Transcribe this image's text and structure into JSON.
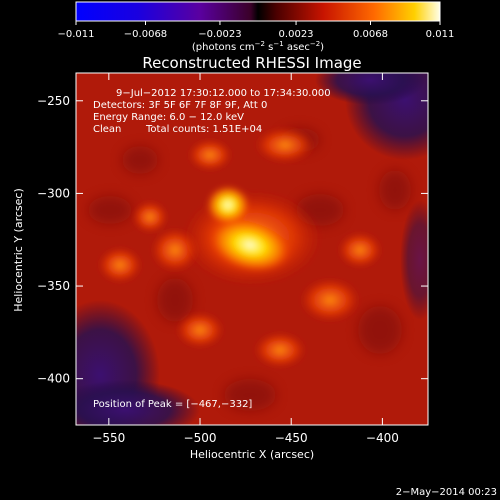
{
  "chart_data": {
    "type": "heatmap",
    "title": "Reconstructed RHESSI Image",
    "xlabel": "Heliocentric X (arcsec)",
    "ylabel": "Heliocentric Y (arcsec)",
    "xlim": [
      -568,
      -375
    ],
    "ylim": [
      -425,
      -235
    ],
    "xticks": [
      -550,
      -500,
      -450,
      -400
    ],
    "yticks": [
      -250,
      -300,
      -350,
      -400
    ],
    "xtick_labels": [
      "−550",
      "−500",
      "−450",
      "−400"
    ],
    "ytick_labels": [
      "−250",
      "−300",
      "−350",
      "−400"
    ],
    "colorbar": {
      "range": [
        -0.011,
        0.011
      ],
      "ticks": [
        -0.011,
        -0.0068,
        -0.0023,
        0.0023,
        0.0068,
        0.011
      ],
      "tick_labels": [
        "−0.011",
        "−0.0068",
        "−0.0023",
        "0.0023",
        "0.0068",
        "0.011"
      ],
      "units_base": "(photons cm",
      "units_exp1": "−2",
      "units_mid1": " s",
      "units_exp2": "−1",
      "units_mid2": " asec",
      "units_exp3": "−2",
      "units_close": ")"
    },
    "annotations": [
      "9−Jul−2012 17:30:12.000 to 17:34:30.000",
      "Detectors: 3F 5F 6F 7F 8F 9F, Att 0",
      "Energy Range: 6.0 − 12.0 keV",
      "Clean",
      "Total counts: 1.51E+04"
    ],
    "peak_label": "Position of Peak = [−467,−332]",
    "peak_position": [
      -467,
      -332
    ],
    "sources": [
      {
        "x": -467,
        "y": -332,
        "value": 0.011
      },
      {
        "x": -480,
        "y": -316,
        "value": 0.0085
      },
      {
        "x": -485,
        "y": -305,
        "value": 0.0068
      },
      {
        "x": -528,
        "y": -310,
        "value": 0.0055
      },
      {
        "x": -445,
        "y": -345,
        "value": 0.005
      }
    ]
  },
  "footer": {
    "date": "2−May−2014 00:23"
  },
  "colors": {
    "background": "#000000",
    "text": "#ffffff",
    "plot_bg": "#b01a0a"
  }
}
